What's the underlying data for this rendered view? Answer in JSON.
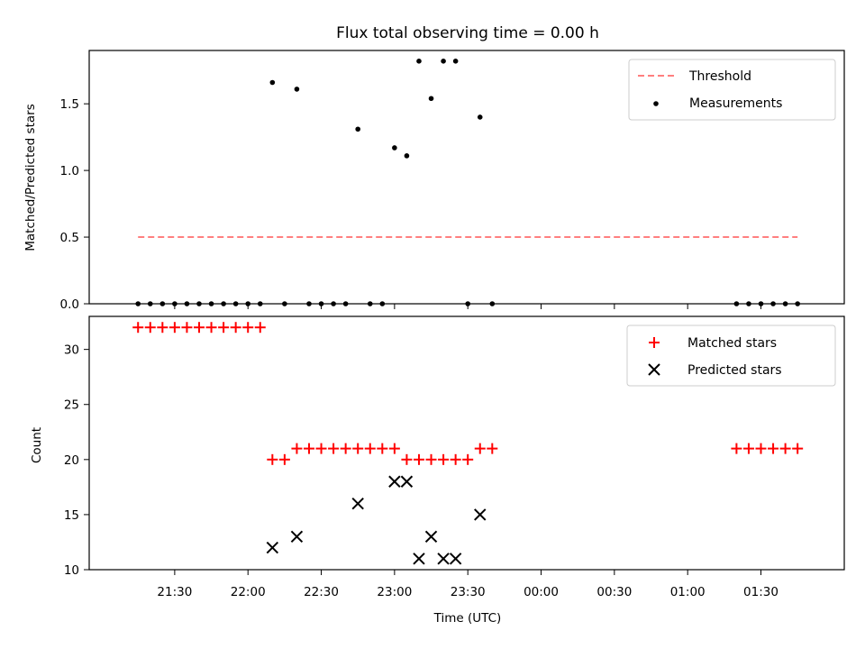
{
  "chart_data": [
    {
      "type": "scatter",
      "title": "Flux total observing time = 0.00 h",
      "xlabel": "",
      "ylabel": "Matched/Predicted stars",
      "ylim": [
        0,
        1.9
      ],
      "yticks": [
        "0.0",
        "0.5",
        "1.0",
        "1.5"
      ],
      "legend": "top-right",
      "grid": false,
      "threshold": {
        "name": "Threshold",
        "value": 0.5,
        "x_start": "21:15",
        "x_end": "01:45",
        "color": "#ff7f7f",
        "style": "dashed"
      },
      "series": [
        {
          "name": "Measurements",
          "color": "#000000",
          "x": [
            "21:15",
            "21:20",
            "21:25",
            "21:30",
            "21:35",
            "21:40",
            "21:45",
            "21:50",
            "21:55",
            "22:00",
            "22:05",
            "22:10",
            "22:15",
            "22:20",
            "22:25",
            "22:30",
            "22:35",
            "22:40",
            "22:45",
            "22:50",
            "22:55",
            "23:00",
            "23:05",
            "23:10",
            "23:15",
            "23:20",
            "23:25",
            "23:30",
            "23:35",
            "23:40",
            "01:20",
            "01:25",
            "01:30",
            "01:35",
            "01:40",
            "01:45"
          ],
          "y": [
            0,
            0,
            0,
            0,
            0,
            0,
            0,
            0,
            0,
            0,
            0,
            1.66,
            0,
            1.61,
            0,
            0,
            0,
            0,
            1.31,
            0,
            0,
            1.17,
            1.11,
            1.82,
            1.54,
            1.82,
            1.82,
            0,
            1.4,
            0,
            0,
            0,
            0,
            0,
            0,
            0
          ]
        }
      ]
    },
    {
      "type": "scatter",
      "title": "",
      "xlabel": "Time (UTC)",
      "ylabel": "Count",
      "ylim": [
        10,
        33
      ],
      "yticks": [
        "10",
        "15",
        "20",
        "25",
        "30"
      ],
      "xticks": [
        "21:30",
        "22:00",
        "22:30",
        "23:00",
        "23:30",
        "00:00",
        "00:30",
        "01:00",
        "01:30"
      ],
      "legend": "top-right",
      "grid": false,
      "series": [
        {
          "name": "Matched stars",
          "color": "#ff0000",
          "marker": "plus",
          "x": [
            "21:15",
            "21:20",
            "21:25",
            "21:30",
            "21:35",
            "21:40",
            "21:45",
            "21:50",
            "21:55",
            "22:00",
            "22:05",
            "22:10",
            "22:15",
            "22:20",
            "22:25",
            "22:30",
            "22:35",
            "22:40",
            "22:45",
            "22:50",
            "22:55",
            "23:00",
            "23:05",
            "23:10",
            "23:15",
            "23:20",
            "23:25",
            "23:30",
            "23:35",
            "23:40",
            "01:20",
            "01:25",
            "01:30",
            "01:35",
            "01:40",
            "01:45"
          ],
          "y": [
            32,
            32,
            32,
            32,
            32,
            32,
            32,
            32,
            32,
            32,
            32,
            20,
            20,
            21,
            21,
            21,
            21,
            21,
            21,
            21,
            21,
            21,
            20,
            20,
            20,
            20,
            20,
            20,
            21,
            21,
            21,
            21,
            21,
            21,
            21,
            21
          ]
        },
        {
          "name": "Predicted stars",
          "color": "#000000",
          "marker": "x",
          "x": [
            "22:10",
            "22:20",
            "22:45",
            "23:00",
            "23:05",
            "23:10",
            "23:15",
            "23:20",
            "23:25",
            "23:35"
          ],
          "y": [
            12,
            13,
            16,
            18,
            18,
            11,
            13,
            11,
            11,
            15
          ]
        }
      ]
    }
  ]
}
